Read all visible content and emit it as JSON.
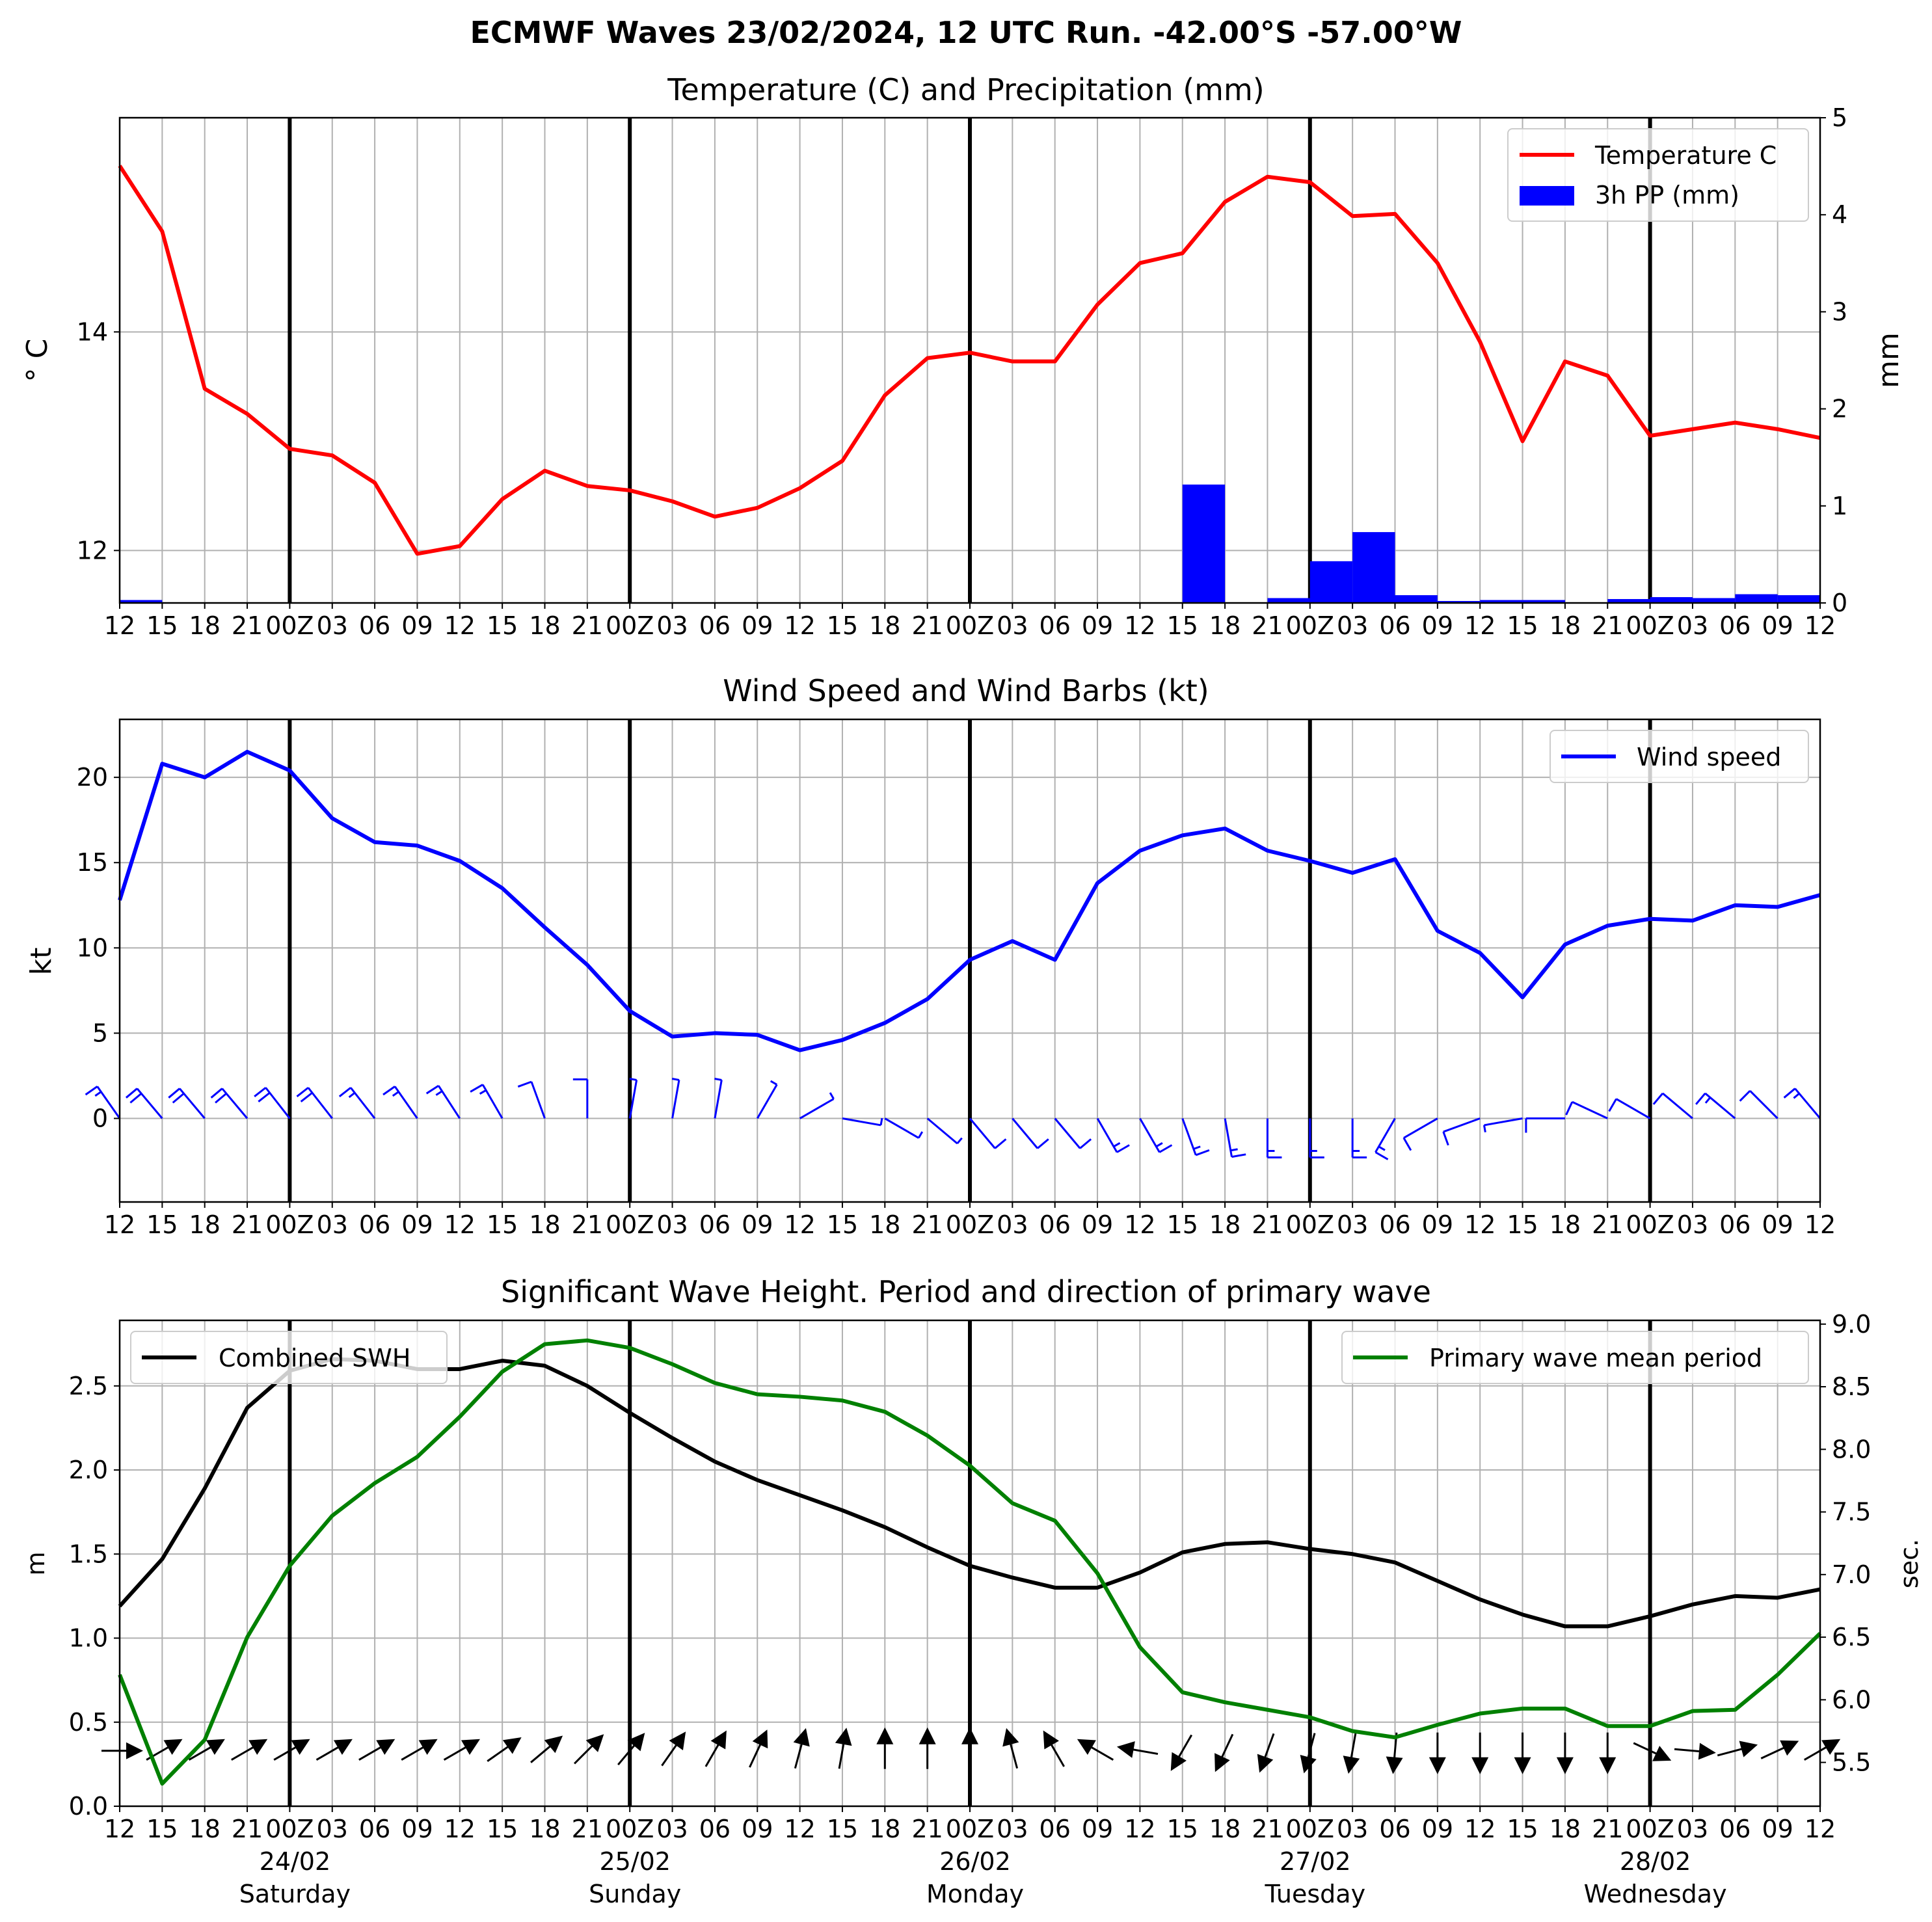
{
  "title": "ECMWF Waves 23/02/2024, 12 UTC Run. -42.00°S -57.00°W",
  "x_tick_labels": [
    "12",
    "15",
    "18",
    "21",
    "00Z",
    "03",
    "06",
    "09",
    "12",
    "15",
    "18",
    "21",
    "00Z",
    "03",
    "06",
    "09",
    "12",
    "15",
    "18",
    "21",
    "00Z",
    "03",
    "06",
    "09",
    "12",
    "15",
    "18",
    "21",
    "00Z",
    "03",
    "06",
    "09",
    "12",
    "15",
    "18",
    "21",
    "00Z",
    "03",
    "06",
    "09",
    "12"
  ],
  "day_labels": [
    {
      "date": "24/02",
      "weekday": "Saturday"
    },
    {
      "date": "25/02",
      "weekday": "Sunday"
    },
    {
      "date": "26/02",
      "weekday": "Monday"
    },
    {
      "date": "27/02",
      "weekday": "Tuesday"
    },
    {
      "date": "28/02",
      "weekday": "Wednesday"
    }
  ],
  "colors": {
    "temperature": "#ff0000",
    "precip": "#0000ff",
    "wind": "#0000ff",
    "swh": "#000000",
    "period": "#008000",
    "grid": "#b0b0b0"
  },
  "chart_data": [
    {
      "type": "line",
      "title": "Temperature (C) and Precipitation (mm)",
      "ylabel": "$^\\circ$C",
      "ylabel_display": "° C",
      "ylabel_right": "mm",
      "ylim": [
        11.52,
        15.96
      ],
      "yticks": [
        12,
        14
      ],
      "ylim_right": [
        0,
        5
      ],
      "yticks_right": [
        0,
        1,
        2,
        3,
        4,
        5
      ],
      "legend_position": "top-right",
      "grid": true,
      "series": [
        {
          "name": "Temperature C",
          "axis": "left",
          "type": "line",
          "values": [
            15.52,
            14.92,
            13.48,
            13.25,
            12.93,
            12.87,
            12.62,
            11.97,
            12.04,
            12.47,
            12.73,
            12.59,
            12.55,
            12.45,
            12.31,
            12.39,
            12.57,
            12.82,
            13.42,
            13.76,
            13.81,
            13.73,
            13.73,
            14.25,
            14.63,
            14.72,
            15.19,
            15.42,
            15.37,
            15.06,
            15.08,
            14.63,
            13.91,
            13.0,
            13.73,
            13.6,
            13.05,
            13.11,
            13.17,
            13.11,
            13.03
          ]
        },
        {
          "name": "3h PP (mm)",
          "axis": "right",
          "type": "bar",
          "values": [
            0.03,
            0,
            0,
            0,
            0,
            0,
            0,
            0,
            0,
            0,
            0,
            0,
            0,
            0,
            0,
            0,
            0,
            0,
            0,
            0,
            0,
            0,
            0,
            0,
            0,
            1.22,
            0,
            0.05,
            0.43,
            0.73,
            0.08,
            0.02,
            0.03,
            0.03,
            0,
            0.04,
            0.06,
            0.05,
            0.09,
            0.08
          ]
        }
      ]
    },
    {
      "type": "line",
      "title": "Wind Speed and Wind Barbs (kt)",
      "ylabel": "kt",
      "ylim": [
        -4.9,
        23.4
      ],
      "yticks": [
        0,
        5,
        10,
        15,
        20
      ],
      "legend_position": "top-right",
      "grid": true,
      "series": [
        {
          "name": "Wind speed",
          "values": [
            12.8,
            20.8,
            20.0,
            21.5,
            20.4,
            17.6,
            16.2,
            16.0,
            15.1,
            13.5,
            11.2,
            9.0,
            6.3,
            4.8,
            5.0,
            4.9,
            4.0,
            4.6,
            5.6,
            7.0,
            9.3,
            10.4,
            9.3,
            13.8,
            15.7,
            16.6,
            17.0,
            15.7,
            15.1,
            14.4,
            15.2,
            11.0,
            9.7,
            7.1,
            10.2,
            11.3,
            11.7,
            11.6,
            12.5,
            12.4,
            13.1
          ]
        }
      ],
      "barbs_direction_towards_deg": [
        215,
        220,
        220,
        220,
        218,
        218,
        218,
        215,
        213,
        210,
        200,
        180,
        170,
        170,
        170,
        150,
        120,
        80,
        60,
        50,
        40,
        40,
        40,
        30,
        30,
        20,
        10,
        0,
        0,
        0,
        330,
        300,
        290,
        280,
        270,
        245,
        240,
        230,
        230,
        225,
        220
      ]
    },
    {
      "type": "line",
      "title": "Significant Wave Height. Period and direction of primary wave",
      "ylabel": "m",
      "ylabel_right": "sec.",
      "ylim": [
        0.0,
        2.89
      ],
      "yticks": [
        0.0,
        0.5,
        1.0,
        1.5,
        2.0,
        2.5
      ],
      "ylim_right": [
        5.15,
        9.03
      ],
      "yticks_right": [
        5.5,
        6.0,
        6.5,
        7.0,
        7.5,
        8.0,
        8.5,
        9.0
      ],
      "grid": true,
      "series": [
        {
          "name": "Combined SWH",
          "axis": "left",
          "legend_position": "top-left",
          "values": [
            1.19,
            1.47,
            1.89,
            2.37,
            2.59,
            2.66,
            2.65,
            2.6,
            2.6,
            2.65,
            2.62,
            2.5,
            2.34,
            2.19,
            2.05,
            1.94,
            1.85,
            1.76,
            1.66,
            1.54,
            1.43,
            1.36,
            1.3,
            1.3,
            1.39,
            1.51,
            1.56,
            1.57,
            1.53,
            1.5,
            1.45,
            1.34,
            1.23,
            1.14,
            1.07,
            1.07,
            1.13,
            1.2,
            1.25,
            1.24,
            1.29
          ]
        },
        {
          "name": "Primary wave mean period",
          "axis": "right",
          "legend_position": "top-right",
          "values": [
            6.2,
            5.33,
            5.68,
            6.5,
            7.07,
            7.47,
            7.73,
            7.94,
            8.26,
            8.62,
            8.84,
            8.87,
            8.81,
            8.68,
            8.53,
            8.44,
            8.42,
            8.39,
            8.3,
            8.11,
            7.87,
            7.57,
            7.43,
            7.01,
            6.42,
            6.06,
            5.98,
            5.92,
            5.86,
            5.75,
            5.7,
            5.8,
            5.89,
            5.93,
            5.93,
            5.79,
            5.79,
            5.91,
            5.92,
            6.2,
            6.53
          ]
        }
      ],
      "arrows_direction_towards_deg": [
        90,
        60,
        60,
        60,
        60,
        60,
        60,
        60,
        60,
        55,
        50,
        45,
        40,
        35,
        30,
        25,
        15,
        10,
        0,
        0,
        0,
        345,
        330,
        300,
        280,
        210,
        205,
        200,
        195,
        190,
        185,
        180,
        180,
        180,
        180,
        180,
        115,
        95,
        75,
        65,
        60
      ]
    }
  ]
}
